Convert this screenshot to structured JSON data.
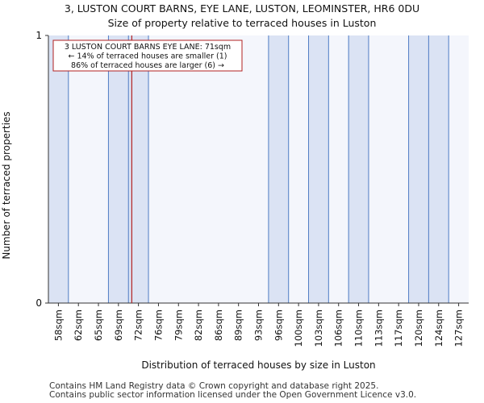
{
  "header": {
    "title": "3, LUSTON COURT BARNS, EYE LANE, LUSTON, LEOMINSTER, HR6 0DU",
    "subtitle": "Size of property relative to terraced houses in Luston"
  },
  "chart_data": {
    "type": "bar",
    "categories": [
      "58sqm",
      "62sqm",
      "65sqm",
      "69sqm",
      "72sqm",
      "76sqm",
      "79sqm",
      "82sqm",
      "86sqm",
      "89sqm",
      "93sqm",
      "96sqm",
      "100sqm",
      "103sqm",
      "106sqm",
      "110sqm",
      "113sqm",
      "117sqm",
      "120sqm",
      "124sqm",
      "127sqm"
    ],
    "values": [
      1,
      0,
      0,
      1,
      1,
      0,
      0,
      0,
      0,
      0,
      0,
      1,
      0,
      1,
      0,
      1,
      0,
      0,
      1,
      1,
      0
    ],
    "xlabel": "Distribution of terraced houses by size in Luston",
    "ylabel": "Number of terraced properties",
    "ylim": [
      0,
      1
    ],
    "yticks": [
      "0",
      "1"
    ],
    "bar_color": "#dbe3f4",
    "bar_edge_color": "#4f7cc4",
    "background_color": "#f4f6fc",
    "marker": {
      "value": 71,
      "unit": "sqm",
      "color": "#b22222",
      "annotation": [
        "3 LUSTON COURT BARNS EYE LANE: 71sqm",
        "← 14% of terraced houses are smaller (1)",
        "86% of terraced houses are larger (6) →"
      ]
    }
  },
  "footer": {
    "line1": "Contains HM Land Registry data © Crown copyright and database right 2025.",
    "line2": "Contains public sector information licensed under the Open Government Licence v3.0."
  }
}
